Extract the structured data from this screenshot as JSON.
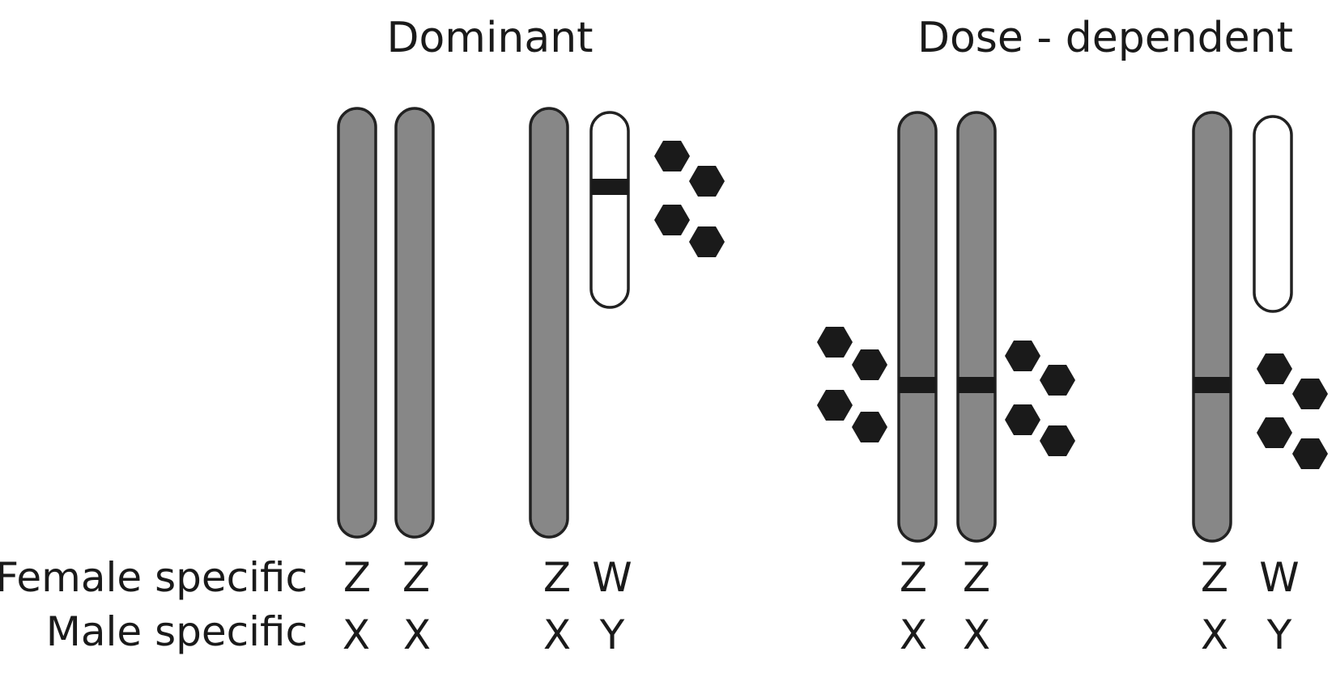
{
  "panels": [
    {
      "title": "Dominant",
      "female_chromosomes": [
        "Z",
        "Z",
        "Z",
        "W"
      ],
      "male_chromosomes": [
        "X",
        "X",
        "X",
        "Y"
      ]
    },
    {
      "title": "Dose - dependent",
      "female_chromosomes": [
        "Z",
        "Z",
        "Z",
        "W"
      ],
      "male_chromosomes": [
        "X",
        "X",
        "X",
        "Y"
      ]
    }
  ],
  "row_labels": {
    "female": "Female specific",
    "male": "Male specific"
  },
  "colors": {
    "chromosome_fill": "#878787",
    "small_chromosome_fill": "#ffffff",
    "outline": "#222222",
    "band": "#1a1a1a",
    "hexagon": "#1a1a1a",
    "text": "#1a1a1a"
  },
  "icons": {
    "gene_product": "hexagon-icon"
  }
}
